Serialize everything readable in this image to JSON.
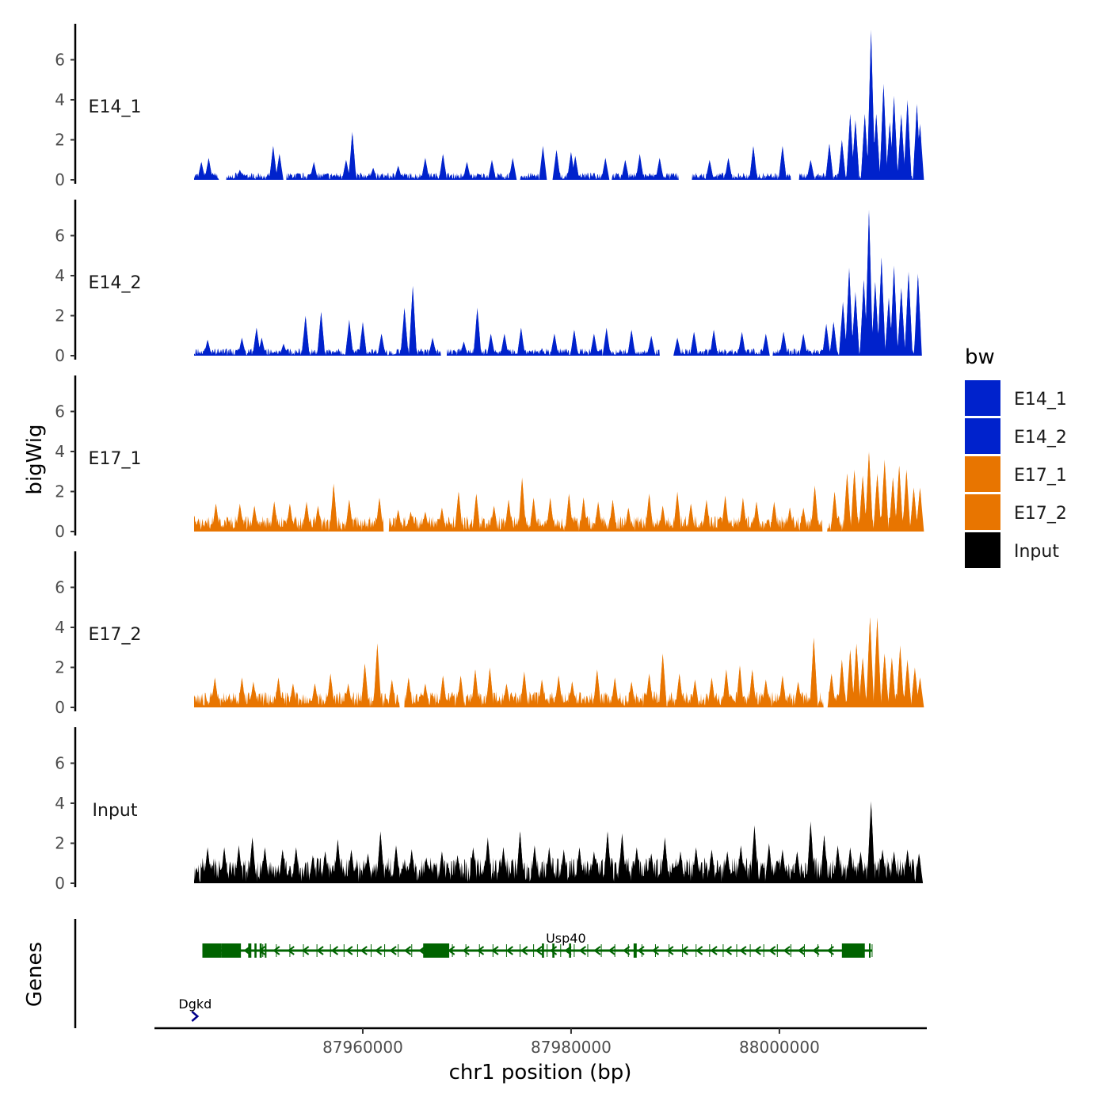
{
  "chart_data": {
    "type": "area",
    "ylabel": "bigWig",
    "genes_label": "Genes",
    "xlabel": "chr1 position (bp)",
    "x_range": [
      87940000,
      88014000
    ],
    "x_ticks": [
      87960000,
      87980000,
      88000000
    ],
    "x_tick_labels": [
      "87960000",
      "87980000",
      "88000000"
    ],
    "y_range": [
      0,
      7.8
    ],
    "y_ticks": [
      0,
      2,
      4,
      6
    ],
    "y_tick_labels": [
      "0",
      "2",
      "4",
      "6"
    ],
    "legend": {
      "title": "bw",
      "entries": [
        {
          "label": "E14_1",
          "color": "#0022cc"
        },
        {
          "label": "E14_2",
          "color": "#0022cc"
        },
        {
          "label": "E17_1",
          "color": "#e87500"
        },
        {
          "label": "E17_2",
          "color": "#e87500"
        },
        {
          "label": "Input",
          "color": "#000000"
        }
      ]
    },
    "series": [
      {
        "name": "E14_1",
        "color": "#0022cc",
        "peaks": [
          [
            87944500,
            0.9
          ],
          [
            87945200,
            1.1
          ],
          [
            87948200,
            0.5
          ],
          [
            87951400,
            1.7
          ],
          [
            87952000,
            1.3
          ],
          [
            87955300,
            0.9
          ],
          [
            87958400,
            1.0
          ],
          [
            87959000,
            2.4
          ],
          [
            87961000,
            0.6
          ],
          [
            87963400,
            0.7
          ],
          [
            87966000,
            1.1
          ],
          [
            87967700,
            1.3
          ],
          [
            87970000,
            0.9
          ],
          [
            87972400,
            1.0
          ],
          [
            87974400,
            1.1
          ],
          [
            87977300,
            1.7
          ],
          [
            87978600,
            1.5
          ],
          [
            87980000,
            1.4
          ],
          [
            87980400,
            1.2
          ],
          [
            87983300,
            1.1
          ],
          [
            87985200,
            1.0
          ],
          [
            87986600,
            1.3
          ],
          [
            87988500,
            1.1
          ],
          [
            87993300,
            1.0
          ],
          [
            87995100,
            1.1
          ],
          [
            87997500,
            1.7
          ],
          [
            88000300,
            1.7
          ],
          [
            88003000,
            1.0
          ],
          [
            88004800,
            1.8
          ],
          [
            88006000,
            2.0
          ],
          [
            88006800,
            3.3
          ],
          [
            88007300,
            3.0
          ],
          [
            88008200,
            3.3
          ],
          [
            88008800,
            7.5
          ],
          [
            88009300,
            3.3
          ],
          [
            88010000,
            4.8
          ],
          [
            88010600,
            2.9
          ],
          [
            88011000,
            4.2
          ],
          [
            88011700,
            3.3
          ],
          [
            88012300,
            4.0
          ],
          [
            88013200,
            3.8
          ],
          [
            88013500,
            2.8
          ]
        ],
        "gaps": [
          [
            87946200,
            87946900
          ],
          [
            87952200,
            87952700
          ],
          [
            87974500,
            87975100
          ],
          [
            87976900,
            87978500
          ],
          [
            87983400,
            87983900
          ],
          [
            87990300,
            87991600
          ],
          [
            88001100,
            88001900
          ]
        ]
      },
      {
        "name": "E14_2",
        "color": "#0022cc",
        "peaks": [
          [
            87945100,
            0.8
          ],
          [
            87948400,
            0.9
          ],
          [
            87949800,
            1.4
          ],
          [
            87950300,
            0.9
          ],
          [
            87952400,
            0.6
          ],
          [
            87954500,
            2.0
          ],
          [
            87956000,
            2.2
          ],
          [
            87958700,
            1.8
          ],
          [
            87960000,
            1.7
          ],
          [
            87961800,
            1.1
          ],
          [
            87964000,
            2.4
          ],
          [
            87964800,
            3.5
          ],
          [
            87966700,
            0.9
          ],
          [
            87969700,
            0.7
          ],
          [
            87971000,
            2.4
          ],
          [
            87972300,
            1.1
          ],
          [
            87973600,
            1.1
          ],
          [
            87975200,
            1.4
          ],
          [
            87978400,
            1.1
          ],
          [
            87980300,
            1.3
          ],
          [
            87982200,
            1.1
          ],
          [
            87983400,
            1.4
          ],
          [
            87985800,
            1.3
          ],
          [
            87987700,
            1.0
          ],
          [
            87990200,
            0.9
          ],
          [
            87991800,
            1.2
          ],
          [
            87993700,
            1.3
          ],
          [
            87996400,
            1.2
          ],
          [
            87998700,
            1.1
          ],
          [
            88000400,
            1.2
          ],
          [
            88002300,
            1.1
          ],
          [
            88004500,
            1.6
          ],
          [
            88005200,
            1.7
          ],
          [
            88006100,
            2.7
          ],
          [
            88006700,
            4.4
          ],
          [
            88007300,
            3.2
          ],
          [
            88008100,
            3.8
          ],
          [
            88008600,
            7.3
          ],
          [
            88009200,
            3.7
          ],
          [
            88009800,
            4.9
          ],
          [
            88010500,
            2.9
          ],
          [
            88011000,
            4.5
          ],
          [
            88011700,
            3.4
          ],
          [
            88012400,
            4.2
          ],
          [
            88013300,
            4.1
          ]
        ],
        "gaps": [
          [
            87967500,
            87968100
          ],
          [
            87983000,
            87983600
          ],
          [
            87988500,
            87990000
          ],
          [
            87998900,
            87999400
          ]
        ]
      },
      {
        "name": "E17_1",
        "color": "#e87500",
        "peaks": [
          [
            87945900,
            1.4
          ],
          [
            87948200,
            1.4
          ],
          [
            87949600,
            1.3
          ],
          [
            87951500,
            1.5
          ],
          [
            87953000,
            1.4
          ],
          [
            87954600,
            1.5
          ],
          [
            87955700,
            1.3
          ],
          [
            87957200,
            2.4
          ],
          [
            87958700,
            1.6
          ],
          [
            87961600,
            1.7
          ],
          [
            87963400,
            1.1
          ],
          [
            87964600,
            1.0
          ],
          [
            87966000,
            1.0
          ],
          [
            87967600,
            1.2
          ],
          [
            87969200,
            2.0
          ],
          [
            87970900,
            1.9
          ],
          [
            87972600,
            1.3
          ],
          [
            87974000,
            1.6
          ],
          [
            87975300,
            2.7
          ],
          [
            87976400,
            1.7
          ],
          [
            87978000,
            1.7
          ],
          [
            87979800,
            1.9
          ],
          [
            87981200,
            1.7
          ],
          [
            87982600,
            1.5
          ],
          [
            87984000,
            1.6
          ],
          [
            87985500,
            1.2
          ],
          [
            87987500,
            1.9
          ],
          [
            87988800,
            1.3
          ],
          [
            87990200,
            2.0
          ],
          [
            87991500,
            1.4
          ],
          [
            87993000,
            1.6
          ],
          [
            87994800,
            1.8
          ],
          [
            87996500,
            1.7
          ],
          [
            87997800,
            1.5
          ],
          [
            87999500,
            1.5
          ],
          [
            88001000,
            1.2
          ],
          [
            88002300,
            1.2
          ],
          [
            88003400,
            2.3
          ],
          [
            88005300,
            2.0
          ],
          [
            88006500,
            2.9
          ],
          [
            88007200,
            3.1
          ],
          [
            88008000,
            2.8
          ],
          [
            88008600,
            4.0
          ],
          [
            88009400,
            2.9
          ],
          [
            88010100,
            3.6
          ],
          [
            88010900,
            2.7
          ],
          [
            88011500,
            3.3
          ],
          [
            88012200,
            3.1
          ],
          [
            88012900,
            2.2
          ],
          [
            88013500,
            2.2
          ]
        ],
        "gaps": [
          [
            87962000,
            87962500
          ],
          [
            88004100,
            88004600
          ]
        ]
      },
      {
        "name": "E17_2",
        "color": "#e87500",
        "peaks": [
          [
            87945800,
            1.5
          ],
          [
            87948400,
            1.5
          ],
          [
            87949500,
            1.3
          ],
          [
            87951900,
            1.5
          ],
          [
            87953300,
            1.2
          ],
          [
            87955400,
            1.2
          ],
          [
            87956900,
            1.7
          ],
          [
            87958600,
            1.2
          ],
          [
            87960200,
            2.2
          ],
          [
            87961400,
            3.2
          ],
          [
            87962800,
            1.4
          ],
          [
            87964400,
            1.5
          ],
          [
            87966000,
            1.2
          ],
          [
            87967700,
            1.6
          ],
          [
            87969400,
            1.6
          ],
          [
            87970800,
            1.9
          ],
          [
            87972200,
            2.0
          ],
          [
            87973800,
            1.2
          ],
          [
            87975500,
            1.8
          ],
          [
            87977200,
            1.4
          ],
          [
            87978800,
            1.6
          ],
          [
            87980100,
            1.3
          ],
          [
            87982500,
            1.9
          ],
          [
            87984200,
            1.5
          ],
          [
            87985800,
            1.3
          ],
          [
            87987500,
            1.7
          ],
          [
            87988800,
            2.7
          ],
          [
            87990400,
            1.7
          ],
          [
            87991900,
            1.4
          ],
          [
            87993500,
            1.5
          ],
          [
            87994900,
            1.9
          ],
          [
            87996200,
            2.1
          ],
          [
            87997400,
            1.9
          ],
          [
            87998700,
            1.4
          ],
          [
            88000300,
            1.6
          ],
          [
            88001800,
            1.3
          ],
          [
            88003300,
            3.5
          ],
          [
            88005000,
            1.7
          ],
          [
            88006000,
            2.4
          ],
          [
            88006800,
            2.9
          ],
          [
            88007400,
            3.2
          ],
          [
            88008000,
            2.5
          ],
          [
            88008700,
            4.5
          ],
          [
            88009400,
            4.5
          ],
          [
            88010100,
            2.7
          ],
          [
            88010800,
            2.5
          ],
          [
            88011600,
            3.1
          ],
          [
            88012300,
            2.4
          ],
          [
            88013000,
            2.0
          ],
          [
            88013500,
            1.5
          ]
        ],
        "gaps": [
          [
            87963500,
            87964000
          ],
          [
            88004200,
            88004700
          ]
        ]
      },
      {
        "name": "Input",
        "color": "#000000",
        "peaks": [
          [
            87945100,
            1.8
          ],
          [
            87946700,
            1.8
          ],
          [
            87948100,
            1.9
          ],
          [
            87949400,
            2.3
          ],
          [
            87950600,
            1.8
          ],
          [
            87952300,
            1.7
          ],
          [
            87953600,
            1.8
          ],
          [
            87955200,
            1.4
          ],
          [
            87956400,
            1.6
          ],
          [
            87957600,
            2.2
          ],
          [
            87958900,
            1.7
          ],
          [
            87960500,
            1.5
          ],
          [
            87961700,
            2.6
          ],
          [
            87963200,
            1.9
          ],
          [
            87964700,
            1.7
          ],
          [
            87966100,
            1.3
          ],
          [
            87967600,
            1.6
          ],
          [
            87969100,
            1.4
          ],
          [
            87970600,
            1.8
          ],
          [
            87972000,
            2.3
          ],
          [
            87973500,
            1.8
          ],
          [
            87975100,
            2.6
          ],
          [
            87976500,
            1.9
          ],
          [
            87977900,
            1.8
          ],
          [
            87979300,
            1.7
          ],
          [
            87980800,
            1.8
          ],
          [
            87982200,
            1.6
          ],
          [
            87983500,
            2.6
          ],
          [
            87984900,
            2.5
          ],
          [
            87986300,
            1.8
          ],
          [
            87987700,
            1.5
          ],
          [
            87989000,
            2.3
          ],
          [
            87990500,
            1.6
          ],
          [
            87992000,
            1.8
          ],
          [
            87993500,
            1.7
          ],
          [
            87995000,
            1.6
          ],
          [
            87996300,
            1.9
          ],
          [
            87997600,
            2.9
          ],
          [
            87999000,
            2.0
          ],
          [
            88000300,
            1.7
          ],
          [
            88001700,
            1.6
          ],
          [
            88003000,
            3.1
          ],
          [
            88004300,
            2.4
          ],
          [
            88005600,
            1.9
          ],
          [
            88006800,
            1.8
          ],
          [
            88007800,
            1.6
          ],
          [
            88008800,
            4.1
          ],
          [
            88009900,
            1.7
          ],
          [
            88011000,
            1.6
          ],
          [
            88012300,
            1.7
          ],
          [
            88013400,
            1.5
          ]
        ],
        "gaps": []
      }
    ],
    "genes": [
      {
        "name": "Usp40",
        "label": "Usp40",
        "color": "#006400",
        "strand": "-",
        "start": 87944600,
        "end": 88008900,
        "exons": [
          [
            87944600,
            87946400
          ],
          [
            87946400,
            87948300
          ],
          [
            87949000,
            87949300
          ],
          [
            87949600,
            87949800
          ],
          [
            87950100,
            87950300
          ],
          [
            87950600,
            87950700
          ],
          [
            87965800,
            87968300
          ],
          [
            87977200,
            87977400
          ],
          [
            87978200,
            87978400
          ],
          [
            87979800,
            87980000
          ],
          [
            87986000,
            87986300
          ],
          [
            88006000,
            88008200
          ],
          [
            88008600,
            88008700
          ]
        ]
      },
      {
        "name": "Dgkd",
        "label": "Dgkd",
        "color": "#00008b",
        "strand": "+",
        "start": 87943600,
        "end": 87944200,
        "exons": []
      }
    ]
  }
}
